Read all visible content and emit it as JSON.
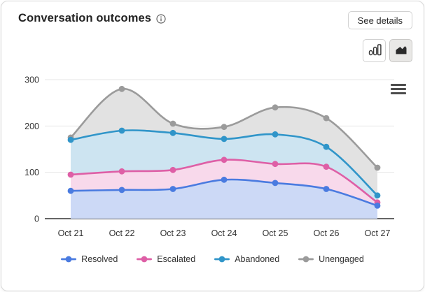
{
  "card": {
    "title": "Conversation outcomes",
    "see_details_label": "See details",
    "icons": {
      "info": "info-icon",
      "column_chart_toggle": "column-chart-icon",
      "area_chart_toggle": "area-chart-icon (selected)",
      "chart_context_menu": "hamburger-menu-icon"
    },
    "selected_chart_type": "area"
  },
  "chart_data": {
    "type": "area",
    "title": "Conversation outcomes",
    "categories": [
      "Oct 21",
      "Oct 22",
      "Oct 23",
      "Oct 24",
      "Oct 25",
      "Oct 26",
      "Oct 27"
    ],
    "series": [
      {
        "name": "Resolved",
        "color": "#4a7be0",
        "fill": "#ccd9f6",
        "values": [
          60,
          62,
          64,
          84,
          77,
          64,
          28
        ]
      },
      {
        "name": "Escalated",
        "color": "#de5fa6",
        "fill": "#f8d9eb",
        "values": [
          95,
          102,
          105,
          127,
          118,
          112,
          35
        ]
      },
      {
        "name": "Abandoned",
        "color": "#3095c9",
        "fill": "#cde4f1",
        "values": [
          170,
          190,
          185,
          172,
          182,
          155,
          50
        ]
      },
      {
        "name": "Unengaged",
        "color": "#9b9b9b",
        "fill": "#e2e2e2",
        "values": [
          175,
          280,
          205,
          198,
          240,
          217,
          110
        ]
      }
    ],
    "xlabel": "",
    "ylabel": "",
    "ylim": [
      0,
      300
    ],
    "yticks": [
      0,
      100,
      200,
      300
    ],
    "grid": true,
    "legend_position": "bottom"
  }
}
